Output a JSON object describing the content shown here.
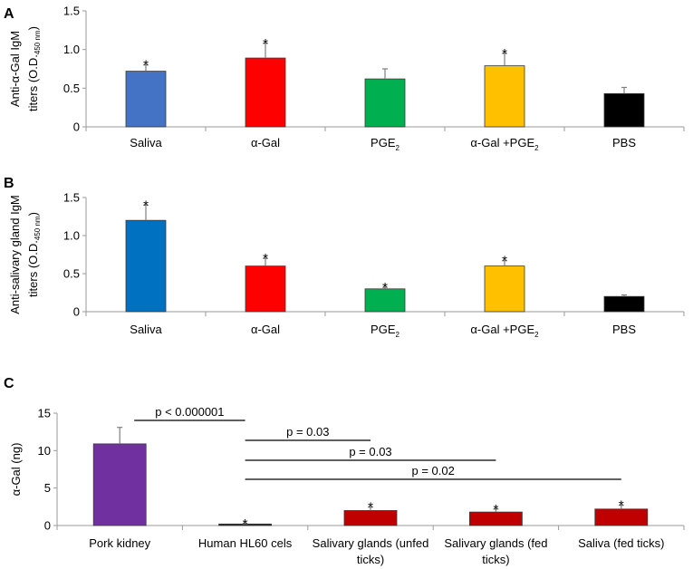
{
  "chart_data": [
    {
      "type": "bar",
      "panel": "A",
      "ylabel_lines": [
        "Anti-α-Gal IgM",
        "titers (O.D."
      ],
      "ylabel_subscript": "450 nm",
      "ylabel_close": ")",
      "ylim": [
        0,
        1.5
      ],
      "yticks": [
        "0",
        "0.5",
        "1.0",
        "1.5"
      ],
      "ytick_values": [
        0,
        0.5,
        1.0,
        1.5
      ],
      "categories": [
        {
          "label": "Saliva"
        },
        {
          "label": "α-Gal"
        },
        {
          "label": "PGE",
          "sub": "2"
        },
        {
          "label": "α-Gal +PGE",
          "sub": "2"
        },
        {
          "label": "PBS"
        }
      ],
      "values": [
        0.72,
        0.89,
        0.62,
        0.79,
        0.43
      ],
      "errors": [
        0.08,
        0.19,
        0.13,
        0.16,
        0.08
      ],
      "significance": [
        "*",
        "*",
        "",
        "*",
        ""
      ],
      "colors": [
        "#4472C4",
        "#FF0000",
        "#00B050",
        "#FFC000",
        "#000000"
      ]
    },
    {
      "type": "bar",
      "panel": "B",
      "ylabel_lines": [
        "Anti-salivary gland IgM",
        "titers (O.D."
      ],
      "ylabel_subscript": "450 nm",
      "ylabel_close": ")",
      "ylim": [
        0,
        1.5
      ],
      "yticks": [
        "0",
        "0.5",
        "1.0",
        "1.5"
      ],
      "ytick_values": [
        0,
        0.5,
        1.0,
        1.5
      ],
      "categories": [
        {
          "label": "Saliva"
        },
        {
          "label": "α-Gal"
        },
        {
          "label": "PGE",
          "sub": "2"
        },
        {
          "label": "α-Gal +PGE",
          "sub": "2"
        },
        {
          "label": "PBS"
        }
      ],
      "values": [
        1.2,
        0.6,
        0.3,
        0.6,
        0.2
      ],
      "errors": [
        0.2,
        0.1,
        0.02,
        0.07,
        0.02
      ],
      "significance": [
        "*",
        "*",
        "*",
        "*",
        ""
      ],
      "colors": [
        "#0070C0",
        "#FF0000",
        "#00B050",
        "#FFC000",
        "#000000"
      ]
    },
    {
      "type": "bar",
      "panel": "C",
      "ylabel_lines": [
        "α-Gal (ng)"
      ],
      "ylim": [
        0,
        15
      ],
      "yticks": [
        "0",
        "5",
        "10",
        "15"
      ],
      "ytick_values": [
        0,
        5,
        10,
        15
      ],
      "categories": [
        {
          "label": "Pork kidney"
        },
        {
          "label": "Human HL60 cels"
        },
        {
          "label": "Salivary glands (unfed",
          "line2": "ticks)"
        },
        {
          "label": "Salivary glands (fed",
          "line2": "ticks)"
        },
        {
          "label": "Saliva (fed ticks)"
        }
      ],
      "values": [
        10.9,
        0.2,
        2.0,
        1.8,
        2.2
      ],
      "errors": [
        2.2,
        0.05,
        0.45,
        0.4,
        0.5
      ],
      "significance": [
        "",
        "*",
        "*",
        "*",
        "*"
      ],
      "colors": [
        "#7030A0",
        "#1F1F1F",
        "#C00000",
        "#C00000",
        "#C00000"
      ],
      "comparisons": [
        {
          "from": 0,
          "to": 1,
          "label": "p < 0.000001"
        },
        {
          "from": 1,
          "to": 2,
          "label": "p = 0.03"
        },
        {
          "from": 1,
          "to": 3,
          "label": "p = 0.03"
        },
        {
          "from": 1,
          "to": 4,
          "label": "p = 0.02"
        }
      ]
    }
  ]
}
